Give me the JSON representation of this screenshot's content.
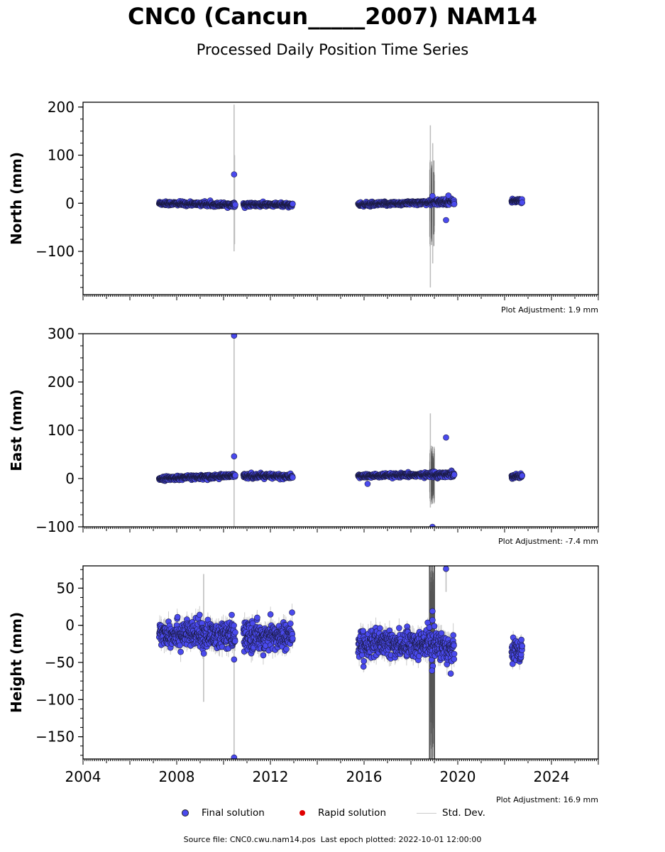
{
  "title": "CNC0 (Cancun_____2007) NAM14",
  "subtitle": "Processed Daily Position Time Series",
  "legend": {
    "final": "Final solution",
    "rapid": "Rapid solution",
    "std": "Std. Dev."
  },
  "footer": {
    "source": "Source file: CNC0.cwu.nam14.pos",
    "last_epoch": "Last epoch plotted: 2022-10-01 12:00:00"
  },
  "colors": {
    "final": "#4a4aee",
    "final_edge": "#1a1a40",
    "rapid": "#e00000",
    "std_light": "#cccccc",
    "std_dark": "#555555"
  },
  "chart_data": [
    {
      "type": "scatter",
      "ylabel": "North (mm)",
      "adjustment": "Plot Adjustment: 1.9 mm",
      "xlim": [
        2004,
        2026
      ],
      "ylim": [
        -190,
        210
      ],
      "yticks": [
        -100,
        0,
        100,
        200
      ],
      "ytick_labels": [
        "−100",
        "0",
        "100",
        "200"
      ],
      "xticks": [
        2004,
        2008,
        2012,
        2016,
        2020,
        2024
      ],
      "show_xtick_labels": false,
      "segments": [
        {
          "start": 2007.25,
          "end": 2010.5,
          "y0": 0,
          "y1": -3,
          "scatter": 2.0,
          "sigma": 4
        },
        {
          "start": 2010.85,
          "end": 2012.95,
          "y0": -3,
          "y1": -3,
          "scatter": 2.0,
          "sigma": 4
        },
        {
          "start": 2015.75,
          "end": 2018.85,
          "y0": -3,
          "y1": 2,
          "scatter": 2.0,
          "sigma": 4
        },
        {
          "start": 2018.85,
          "end": 2019.85,
          "y0": 2,
          "y1": 4,
          "scatter": 3.0,
          "sigma": 6
        },
        {
          "start": 2022.3,
          "end": 2022.75,
          "y0": 5,
          "y1": 5,
          "scatter": 2.0,
          "sigma": 4
        }
      ],
      "outliers": [
        {
          "x": 2010.45,
          "y": 60
        },
        {
          "x": 2019.5,
          "y": -35
        },
        {
          "x": 2018.92,
          "y": 15
        },
        {
          "x": 2019.6,
          "y": 16
        }
      ],
      "error_bars": [
        {
          "x": 2010.45,
          "low": -100,
          "high": 205,
          "dark": false
        },
        {
          "x": 2010.47,
          "low": -85,
          "high": 100,
          "dark": false
        },
        {
          "x": 2018.83,
          "low": -175,
          "high": 162,
          "dark": false
        },
        {
          "x": 2018.93,
          "low": -125,
          "high": 125,
          "dark": false
        }
      ],
      "dense_band": {
        "start": 2018.8,
        "end": 2019.0,
        "low": -90,
        "high": 90
      }
    },
    {
      "type": "scatter",
      "ylabel": "East (mm)",
      "adjustment": "Plot Adjustment: -7.4 mm",
      "xlim": [
        2004,
        2026
      ],
      "ylim": [
        -100,
        300
      ],
      "yticks": [
        -100,
        0,
        100,
        200,
        300
      ],
      "ytick_labels": [
        "−100",
        "0",
        "100",
        "200",
        "300"
      ],
      "xticks": [
        2004,
        2008,
        2012,
        2016,
        2020,
        2024
      ],
      "show_xtick_labels": false,
      "segments": [
        {
          "start": 2007.25,
          "end": 2010.5,
          "y0": 0,
          "y1": 6,
          "scatter": 2.0,
          "sigma": 4
        },
        {
          "start": 2010.85,
          "end": 2012.95,
          "y0": 6,
          "y1": 4,
          "scatter": 2.5,
          "sigma": 4
        },
        {
          "start": 2015.75,
          "end": 2018.85,
          "y0": 5,
          "y1": 8,
          "scatter": 2.0,
          "sigma": 4
        },
        {
          "start": 2018.85,
          "end": 2019.85,
          "y0": 8,
          "y1": 9,
          "scatter": 3.0,
          "sigma": 6
        },
        {
          "start": 2022.3,
          "end": 2022.75,
          "y0": 5,
          "y1": 5,
          "scatter": 2.0,
          "sigma": 4
        }
      ],
      "outliers": [
        {
          "x": 2010.45,
          "y": 296
        },
        {
          "x": 2010.45,
          "y": 46
        },
        {
          "x": 2019.5,
          "y": 85
        },
        {
          "x": 2016.15,
          "y": -11
        },
        {
          "x": 2018.92,
          "y": -100
        }
      ],
      "error_bars": [
        {
          "x": 2010.45,
          "low": -100,
          "high": 296,
          "dark": false
        },
        {
          "x": 2018.83,
          "low": -60,
          "high": 135,
          "dark": false
        }
      ],
      "dense_band": {
        "start": 2018.8,
        "end": 2019.0,
        "low": -55,
        "high": 70
      }
    },
    {
      "type": "scatter",
      "ylabel": "Height (mm)",
      "adjustment": "Plot Adjustment: 16.9 mm",
      "xlim": [
        2004,
        2026
      ],
      "ylim": [
        -180,
        80
      ],
      "yticks": [
        -150,
        -100,
        -50,
        0,
        50
      ],
      "ytick_labels": [
        "−150",
        "−100",
        "−50",
        "0",
        "50"
      ],
      "xticks": [
        2004,
        2008,
        2012,
        2016,
        2020,
        2024
      ],
      "xtick_labels": [
        "2004",
        "2008",
        "2012",
        "2016",
        "2020",
        "2024"
      ],
      "show_xtick_labels": true,
      "segments": [
        {
          "start": 2007.25,
          "end": 2010.5,
          "y0": -10,
          "y1": -15,
          "scatter": 9.0,
          "sigma": 10
        },
        {
          "start": 2010.85,
          "end": 2012.95,
          "y0": -15,
          "y1": -15,
          "scatter": 9.0,
          "sigma": 10
        },
        {
          "start": 2015.75,
          "end": 2018.85,
          "y0": -25,
          "y1": -25,
          "scatter": 9.0,
          "sigma": 10
        },
        {
          "start": 2018.85,
          "end": 2019.85,
          "y0": -25,
          "y1": -30,
          "scatter": 10.0,
          "sigma": 12
        },
        {
          "start": 2022.3,
          "end": 2022.75,
          "y0": -33,
          "y1": -33,
          "scatter": 8.0,
          "sigma": 8
        }
      ],
      "outliers": [
        {
          "x": 2010.45,
          "y": -46
        },
        {
          "x": 2010.45,
          "y": -178
        },
        {
          "x": 2010.35,
          "y": 14
        },
        {
          "x": 2019.5,
          "y": 76
        },
        {
          "x": 2018.92,
          "y": 19
        },
        {
          "x": 2018.92,
          "y": 7
        },
        {
          "x": 2018.9,
          "y": -61
        },
        {
          "x": 2019.7,
          "y": -65
        }
      ],
      "error_bars": [
        {
          "x": 2010.45,
          "low": -180,
          "high": 5,
          "dark": false
        },
        {
          "x": 2009.15,
          "low": -103,
          "high": 69,
          "dark": false
        },
        {
          "x": 2019.5,
          "low": 45,
          "high": 80,
          "dark": false
        },
        {
          "x": 2018.8,
          "low": -180,
          "high": 80,
          "dark": true
        },
        {
          "x": 2018.9,
          "low": -180,
          "high": 80,
          "dark": true
        },
        {
          "x": 2019.0,
          "low": -180,
          "high": 80,
          "dark": true
        }
      ],
      "dense_band": {
        "start": 2018.8,
        "end": 2019.0,
        "low": -180,
        "high": 80
      }
    }
  ]
}
